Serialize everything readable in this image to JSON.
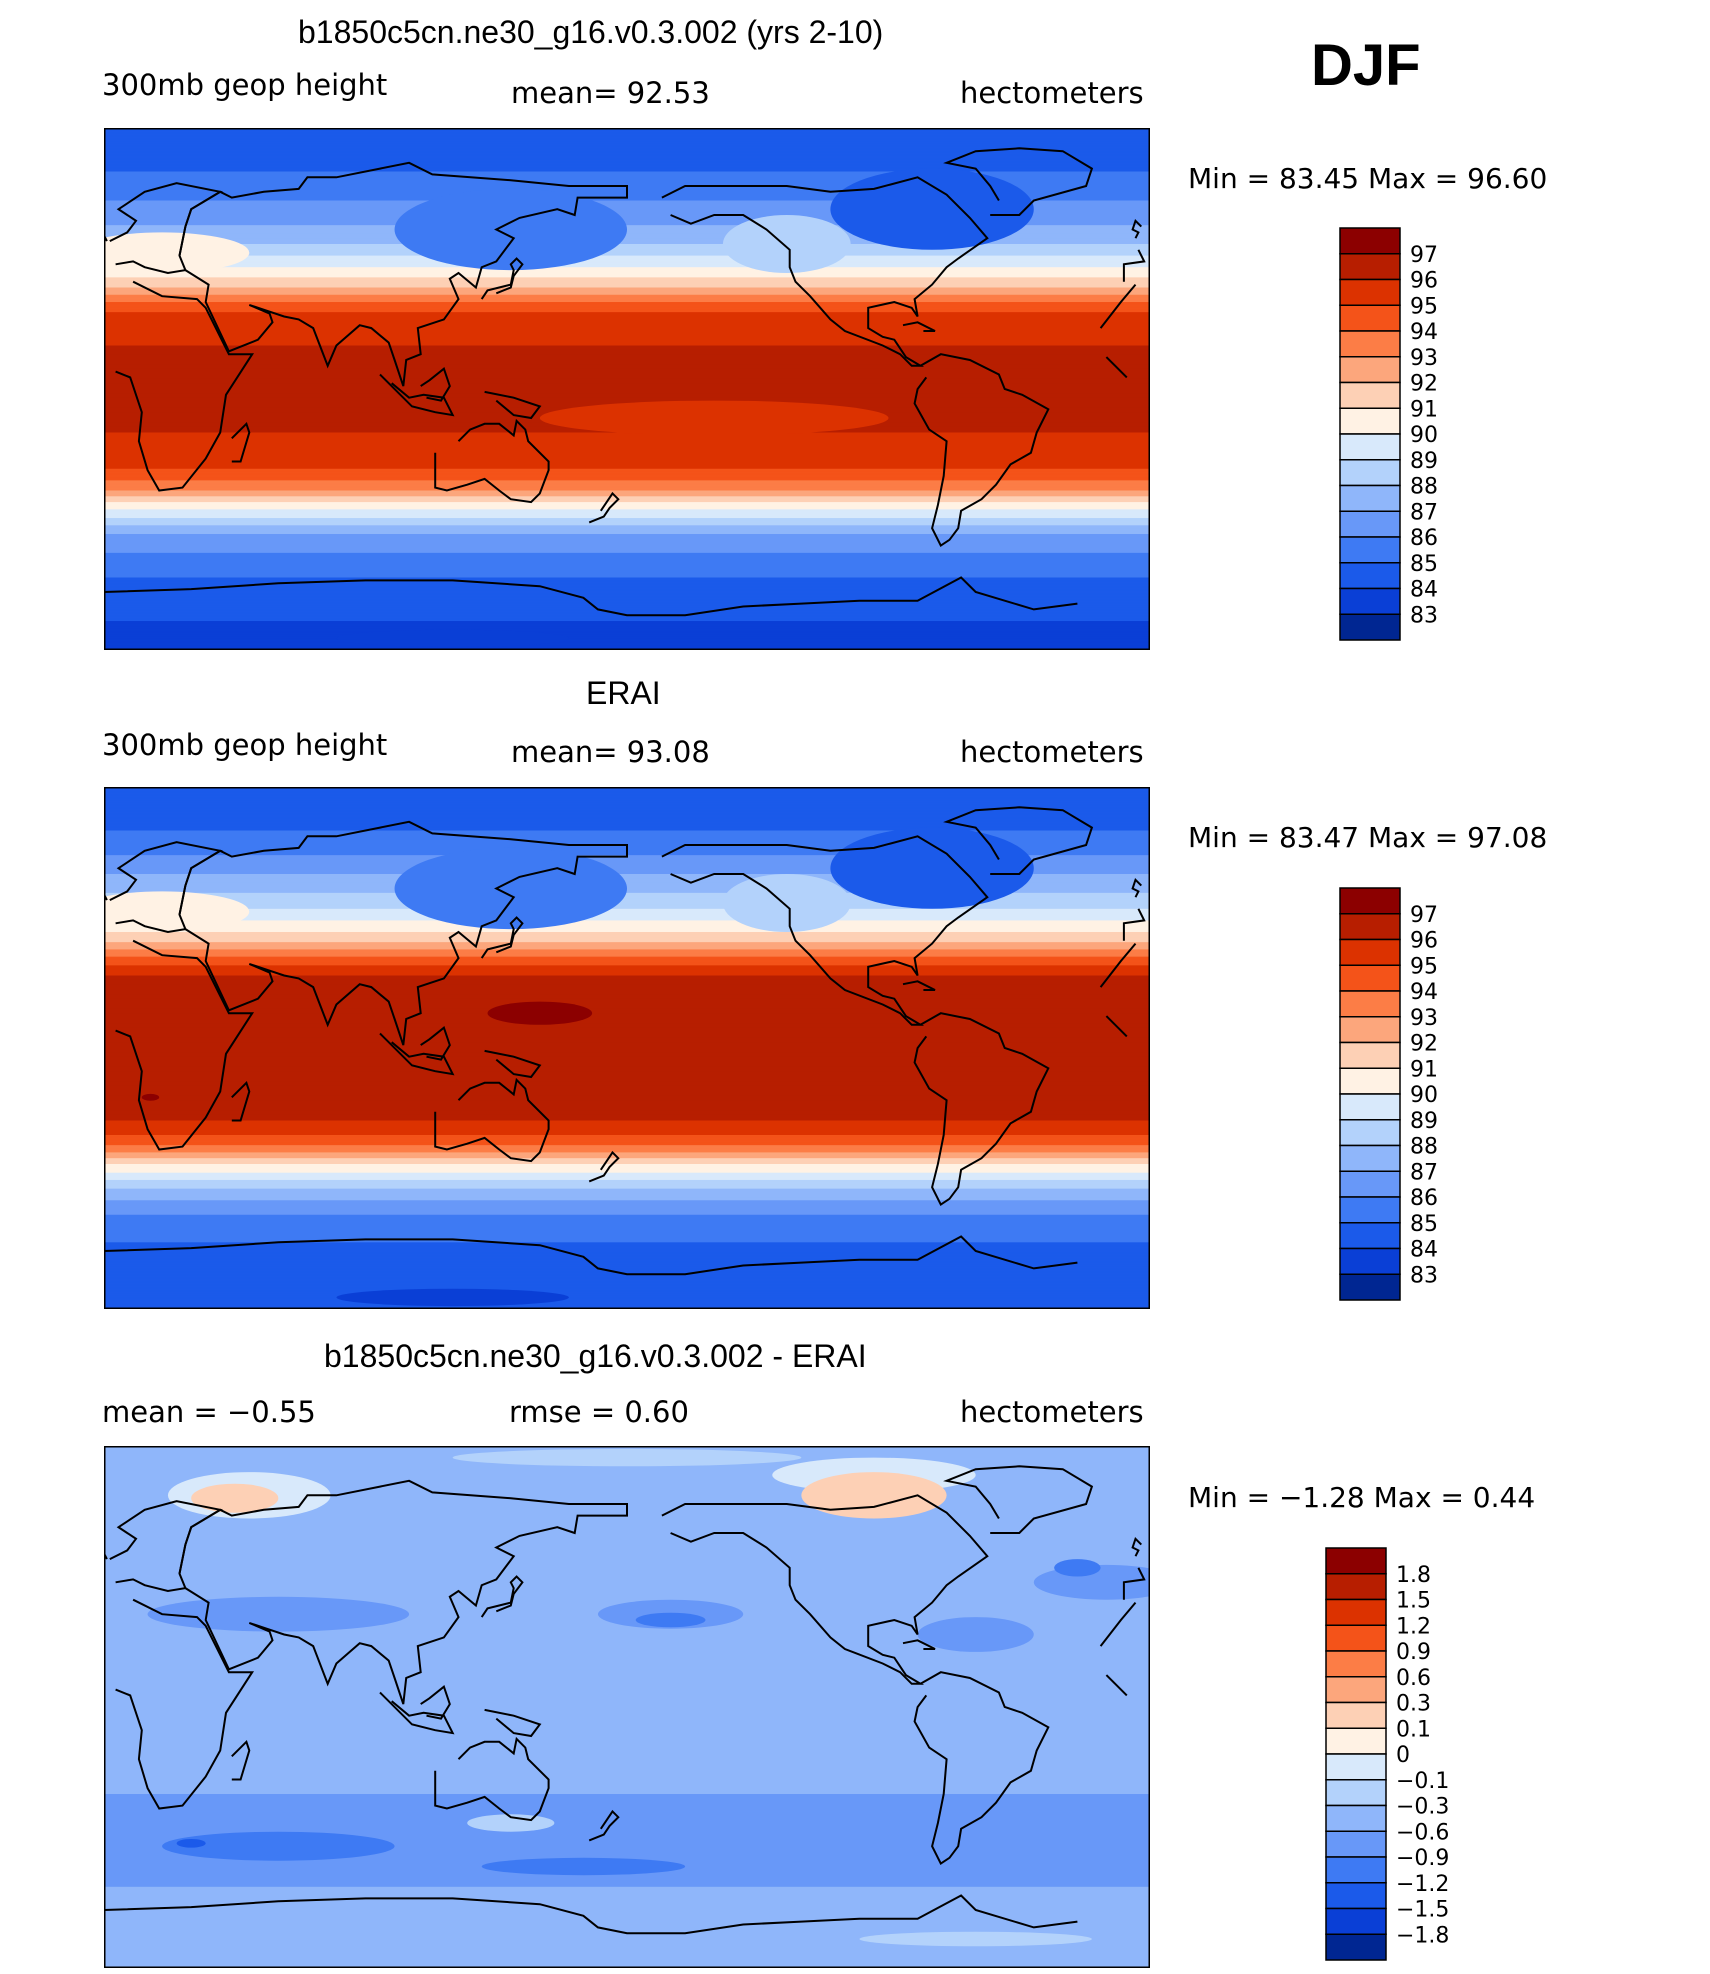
{
  "season": "DJF",
  "panels": [
    {
      "title": "b1850c5cn.ne30_g16.v0.3.002 (yrs 2-10)",
      "left_label": "300mb  geop  height",
      "center_label": "mean=   92.53",
      "units": "hectometers",
      "min_max": "Min  =    83.45  Max  =    96.60",
      "levels": [
        "97",
        "96",
        "95",
        "94",
        "93",
        "92",
        "91",
        "90",
        "89",
        "88",
        "87",
        "86",
        "85",
        "84",
        "83"
      ],
      "colors": [
        "#8c0000",
        "#b71e00",
        "#dc3200",
        "#f45319",
        "#fc7d46",
        "#fca67c",
        "#fdd0b5",
        "#fff2e4",
        "#d8e9fb",
        "#b3d2fb",
        "#8fb6fa",
        "#6898f8",
        "#3e7af3",
        "#1b5aea",
        "#0a3fd6",
        "#002692"
      ]
    },
    {
      "title": "ERAI",
      "left_label": "300mb  geop  height",
      "center_label": "mean=   93.08",
      "units": "hectometers",
      "min_max": "Min  =    83.47  Max  =    97.08",
      "levels": [
        "97",
        "96",
        "95",
        "94",
        "93",
        "92",
        "91",
        "90",
        "89",
        "88",
        "87",
        "86",
        "85",
        "84",
        "83"
      ],
      "colors": [
        "#8c0000",
        "#b71e00",
        "#dc3200",
        "#f45319",
        "#fc7d46",
        "#fca67c",
        "#fdd0b5",
        "#fff2e4",
        "#d8e9fb",
        "#b3d2fb",
        "#8fb6fa",
        "#6898f8",
        "#3e7af3",
        "#1b5aea",
        "#0a3fd6",
        "#002692"
      ]
    },
    {
      "title": "b1850c5cn.ne30_g16.v0.3.002 - ERAI",
      "left_label": "mean  =    −0.55",
      "center_label": "rmse  =     0.60",
      "units": "hectometers",
      "min_max": "Min  =    −1.28  Max  =      0.44",
      "levels": [
        "1.8",
        "1.5",
        "1.2",
        "0.9",
        "0.6",
        "0.3",
        "0.1",
        "0",
        "−0.1",
        "−0.3",
        "−0.6",
        "−0.9",
        "−1.2",
        "−1.5",
        "−1.8"
      ],
      "colors": [
        "#8c0000",
        "#b71e00",
        "#dc3200",
        "#f45319",
        "#fc7d46",
        "#fca67c",
        "#fdd0b5",
        "#fff2e4",
        "#d8e9fb",
        "#b3d2fb",
        "#8fb6fa",
        "#6898f8",
        "#3e7af3",
        "#1b5aea",
        "#0a3fd6",
        "#002692"
      ]
    }
  ],
  "chart_data": [
    {
      "type": "heatmap",
      "title": "b1850c5cn.ne30_g16.v0.3.002 (yrs 2-10)",
      "field": "300mb  geop  height",
      "units": "hectometers",
      "mean": 92.53,
      "min": 83.45,
      "max": 96.6,
      "contour_levels": [
        83,
        84,
        85,
        86,
        87,
        88,
        89,
        90,
        91,
        92,
        93,
        94,
        95,
        96,
        97
      ],
      "zonal_profile_approx": {
        "lat": [
          90,
          80,
          70,
          60,
          50,
          40,
          35,
          30,
          25,
          15,
          0,
          -15,
          -25,
          -30,
          -35,
          -40,
          -50,
          -60,
          -70,
          -80,
          -90
        ],
        "value": [
          84,
          84.5,
          85.5,
          86.5,
          88,
          90.5,
          92,
          94,
          95.5,
          96,
          96,
          96,
          95.5,
          94.5,
          93,
          90.5,
          87,
          85.5,
          84.5,
          84,
          83.8
        ]
      }
    },
    {
      "type": "heatmap",
      "title": "ERAI",
      "field": "300mb  geop  height",
      "units": "hectometers",
      "mean": 93.08,
      "min": 83.47,
      "max": 97.08,
      "contour_levels": [
        83,
        84,
        85,
        86,
        87,
        88,
        89,
        90,
        91,
        92,
        93,
        94,
        95,
        96,
        97
      ],
      "zonal_profile_approx": {
        "lat": [
          90,
          80,
          70,
          60,
          50,
          40,
          35,
          30,
          25,
          15,
          0,
          -15,
          -25,
          -30,
          -35,
          -40,
          -50,
          -60,
          -70,
          -80,
          -90
        ],
        "value": [
          84,
          84.5,
          85.5,
          87,
          88.5,
          91,
          92.5,
          94.5,
          96,
          96.5,
          96.5,
          96.3,
          96,
          95,
          93.5,
          91,
          87.5,
          85.5,
          84.8,
          84.3,
          84
        ]
      }
    },
    {
      "type": "heatmap",
      "title": "b1850c5cn.ne30_g16.v0.3.002 - ERAI",
      "units": "hectometers",
      "mean": -0.55,
      "rmse": 0.6,
      "min": -1.28,
      "max": 0.44,
      "contour_levels": [
        -1.8,
        -1.5,
        -1.2,
        -0.9,
        -0.6,
        -0.3,
        -0.1,
        0,
        0.1,
        0.3,
        0.6,
        0.9,
        1.2,
        1.5,
        1.8
      ]
    }
  ]
}
